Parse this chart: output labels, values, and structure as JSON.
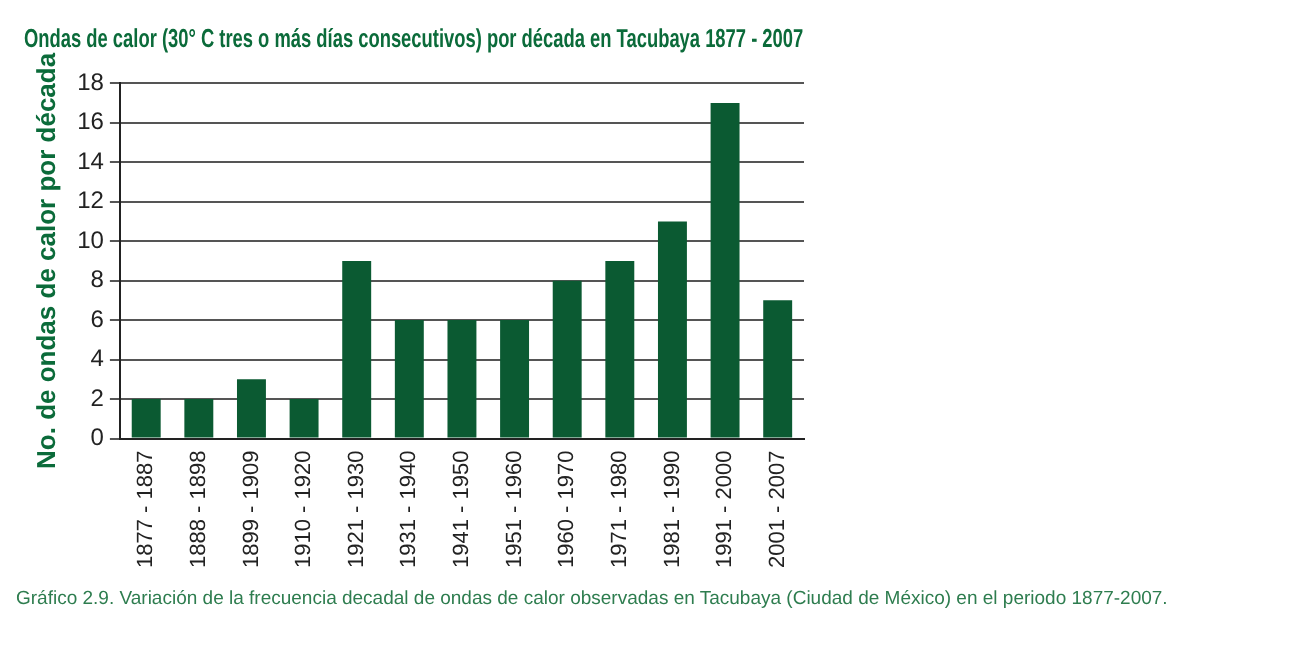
{
  "chart_data": {
    "type": "bar",
    "title": "Ondas de calor (30° C tres o más días consecutivos) por década en Tacubaya 1877 - 2007",
    "ylabel": "No. de ondas de calor por década",
    "categories": [
      "1877 - 1887",
      "1888 - 1898",
      "1899 - 1909",
      "1910 - 1920",
      "1921 - 1930",
      "1931 - 1940",
      "1941 - 1950",
      "1951 - 1960",
      "1960 - 1970",
      "1971 - 1980",
      "1981 - 1990",
      "1991 - 2000",
      "2001 - 2007"
    ],
    "values": [
      2,
      2,
      3,
      2,
      9,
      6,
      6,
      6,
      8,
      9,
      11,
      17,
      7
    ],
    "color": "#0b5a32",
    "ylim": [
      0,
      18
    ],
    "yticks": [
      0,
      2,
      4,
      6,
      8,
      10,
      12,
      14,
      16,
      18
    ],
    "grid": "y",
    "legend": false,
    "annotations": [
      "Gráfico 2.9. Variación de la frecuencia decadal de ondas de calor observadas en Tacubaya (Ciudad de México) en el periodo 1877-2007."
    ]
  }
}
